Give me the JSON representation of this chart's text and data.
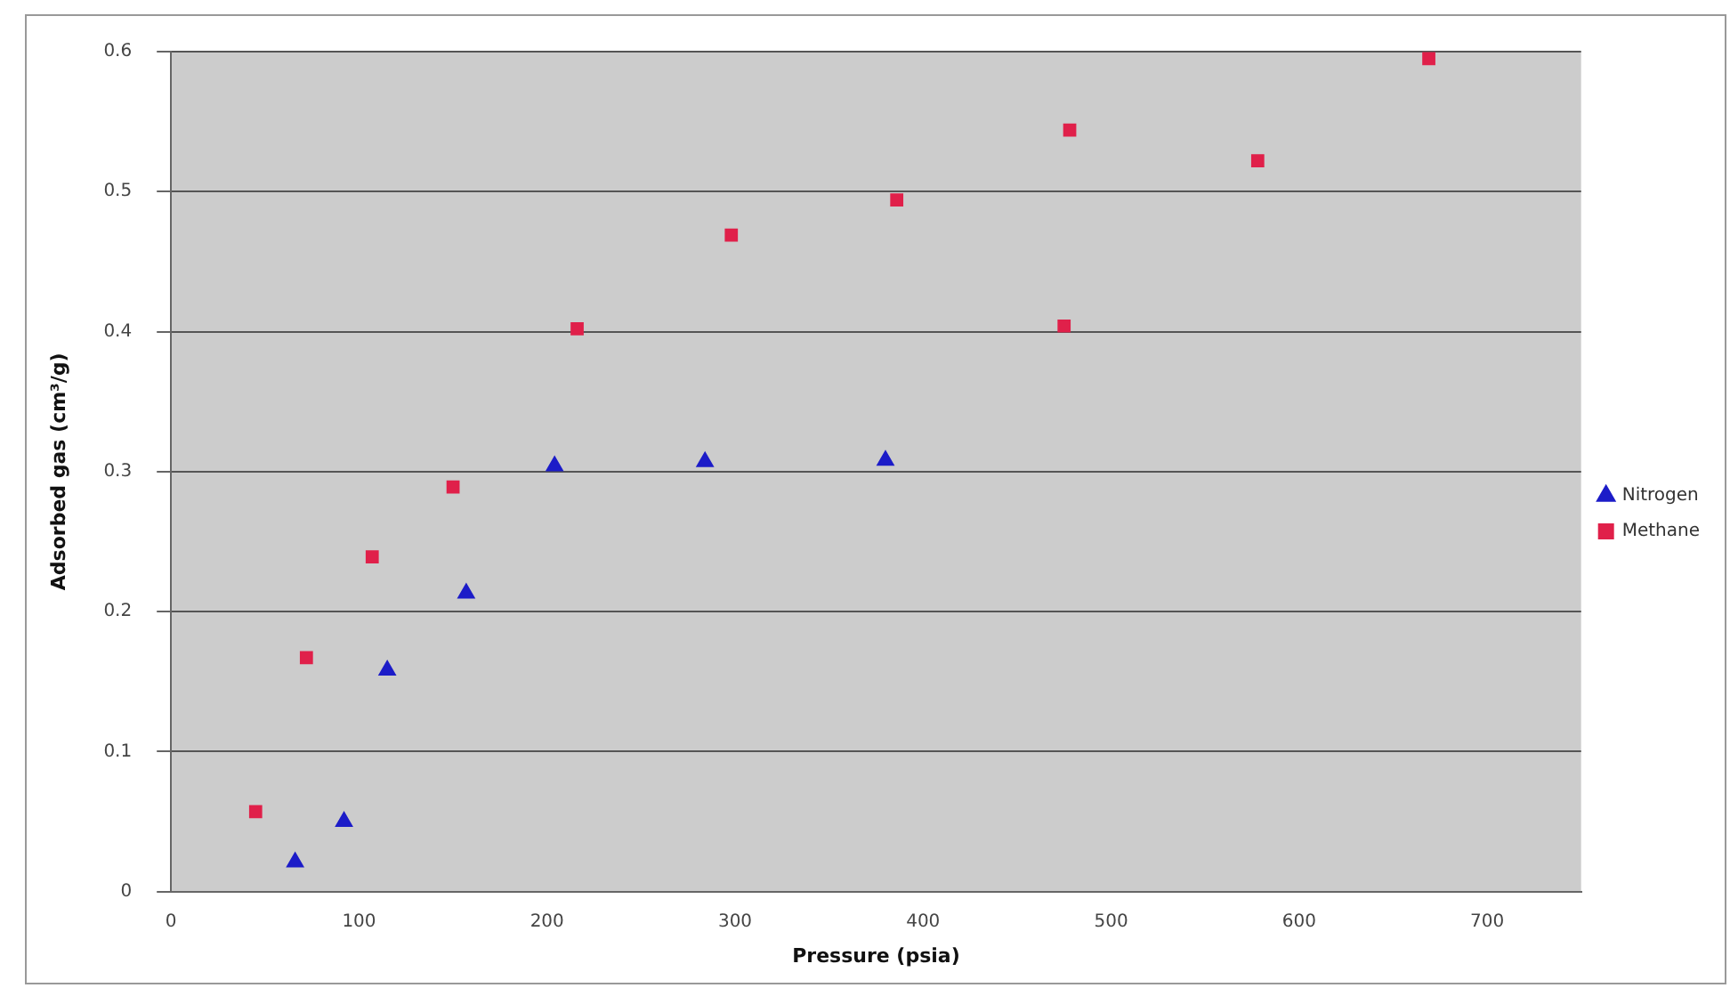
{
  "chart_data": {
    "type": "scatter",
    "xlabel": "Pressure (psia)",
    "ylabel": "Adsorbed gas (cm³/g)",
    "series": [
      {
        "name": "Nitrogen",
        "color": "#1c1cc8",
        "marker": "triangle",
        "x": [
          66,
          92,
          115,
          157,
          204,
          284,
          380
        ],
        "values": [
          0.021,
          0.05,
          0.158,
          0.213,
          0.304,
          0.307,
          0.308
        ]
      },
      {
        "name": "Methane",
        "color": "#e0204a",
        "marker": "square",
        "x": [
          45,
          72,
          107,
          150,
          216,
          298,
          386,
          475,
          478,
          578,
          669
        ],
        "values": [
          0.057,
          0.167,
          0.239,
          0.289,
          0.402,
          0.469,
          0.494,
          0.404,
          0.544,
          0.522,
          0.595
        ]
      }
    ],
    "xlim": [
      0,
      750
    ],
    "xticks": [
      0,
      100,
      200,
      300,
      400,
      500,
      600,
      700
    ],
    "ylim": [
      0,
      0.6
    ],
    "yticks": [
      0,
      0.1,
      0.2,
      0.3,
      0.4,
      0.5,
      0.6
    ],
    "grid": "y",
    "legend": "right"
  }
}
